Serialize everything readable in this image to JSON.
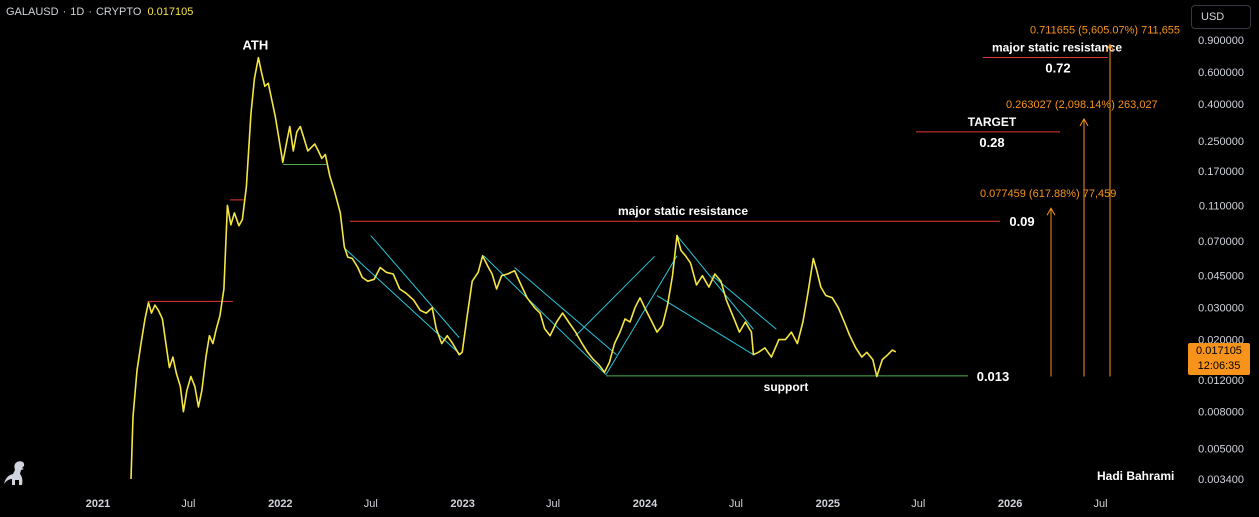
{
  "header": {
    "symbol": "GALAUSD",
    "interval": "1D",
    "exchange": "CRYPTO",
    "last_price": "0.017105"
  },
  "currency_button": "USD",
  "price_tag": {
    "price": "0.017105",
    "countdown": "12:06:35"
  },
  "author": "Hadi Bahrami",
  "colors": {
    "price_line": "#f5e642",
    "resistance": "#e53935",
    "support": "#4caf50",
    "channel": "#26c6da",
    "projection": "#f7931a",
    "background": "#000000"
  },
  "chart_data": {
    "type": "line",
    "series": [
      {
        "values": [
          [
            "2021-03-08",
            0.0034
          ],
          [
            "2021-03-12",
            0.0075
          ],
          [
            "2021-03-20",
            0.0135
          ],
          [
            "2021-03-28",
            0.019
          ],
          [
            "2021-04-05",
            0.026
          ],
          [
            "2021-04-12",
            0.032
          ],
          [
            "2021-04-18",
            0.028
          ],
          [
            "2021-04-25",
            0.031
          ],
          [
            "2021-05-02",
            0.029
          ],
          [
            "2021-05-10",
            0.026
          ],
          [
            "2021-05-17",
            0.019
          ],
          [
            "2021-05-24",
            0.014
          ],
          [
            "2021-05-31",
            0.016
          ],
          [
            "2021-06-07",
            0.013
          ],
          [
            "2021-06-15",
            0.011
          ],
          [
            "2021-06-21",
            0.008
          ],
          [
            "2021-06-28",
            0.0105
          ],
          [
            "2021-07-06",
            0.0125
          ],
          [
            "2021-07-14",
            0.011
          ],
          [
            "2021-07-21",
            0.0085
          ],
          [
            "2021-07-28",
            0.0105
          ],
          [
            "2021-08-05",
            0.016
          ],
          [
            "2021-08-12",
            0.021
          ],
          [
            "2021-08-19",
            0.019
          ],
          [
            "2021-08-26",
            0.023
          ],
          [
            "2021-09-02",
            0.027
          ],
          [
            "2021-09-10",
            0.038
          ],
          [
            "2021-09-17",
            0.11
          ],
          [
            "2021-09-24",
            0.086
          ],
          [
            "2021-10-01",
            0.1
          ],
          [
            "2021-10-10",
            0.085
          ],
          [
            "2021-10-17",
            0.092
          ],
          [
            "2021-10-25",
            0.14
          ],
          [
            "2021-11-03",
            0.35
          ],
          [
            "2021-11-10",
            0.55
          ],
          [
            "2021-11-18",
            0.72
          ],
          [
            "2021-11-24",
            0.6
          ],
          [
            "2021-12-01",
            0.5
          ],
          [
            "2021-12-08",
            0.52
          ],
          [
            "2021-12-15",
            0.42
          ],
          [
            "2021-12-22",
            0.34
          ],
          [
            "2021-12-29",
            0.26
          ],
          [
            "2022-01-06",
            0.19
          ],
          [
            "2022-01-13",
            0.24
          ],
          [
            "2022-01-20",
            0.3
          ],
          [
            "2022-01-27",
            0.22
          ],
          [
            "2022-02-03",
            0.28
          ],
          [
            "2022-02-10",
            0.3
          ],
          [
            "2022-02-17",
            0.26
          ],
          [
            "2022-02-25",
            0.22
          ],
          [
            "2022-03-04",
            0.23
          ],
          [
            "2022-03-11",
            0.24
          ],
          [
            "2022-03-18",
            0.22
          ],
          [
            "2022-03-25",
            0.2
          ],
          [
            "2022-04-01",
            0.21
          ],
          [
            "2022-04-10",
            0.16
          ],
          [
            "2022-04-20",
            0.13
          ],
          [
            "2022-05-01",
            0.1
          ],
          [
            "2022-05-09",
            0.065
          ],
          [
            "2022-05-16",
            0.057
          ],
          [
            "2022-05-25",
            0.056
          ],
          [
            "2022-06-05",
            0.05
          ],
          [
            "2022-06-14",
            0.044
          ],
          [
            "2022-06-25",
            0.042
          ],
          [
            "2022-07-08",
            0.043
          ],
          [
            "2022-07-20",
            0.05
          ],
          [
            "2022-08-01",
            0.047
          ],
          [
            "2022-08-15",
            0.046
          ],
          [
            "2022-08-28",
            0.038
          ],
          [
            "2022-09-10",
            0.036
          ],
          [
            "2022-09-25",
            0.033
          ],
          [
            "2022-10-08",
            0.029
          ],
          [
            "2022-10-20",
            0.028
          ],
          [
            "2022-11-01",
            0.03
          ],
          [
            "2022-11-09",
            0.023
          ],
          [
            "2022-11-20",
            0.019
          ],
          [
            "2022-12-01",
            0.021
          ],
          [
            "2022-12-12",
            0.019
          ],
          [
            "2022-12-25",
            0.0165
          ],
          [
            "2022-12-31",
            0.017
          ],
          [
            "2023-01-10",
            0.027
          ],
          [
            "2023-01-20",
            0.042
          ],
          [
            "2023-02-01",
            0.047
          ],
          [
            "2023-02-10",
            0.058
          ],
          [
            "2023-02-20",
            0.051
          ],
          [
            "2023-03-01",
            0.046
          ],
          [
            "2023-03-10",
            0.038
          ],
          [
            "2023-03-20",
            0.045
          ],
          [
            "2023-04-01",
            0.046
          ],
          [
            "2023-04-15",
            0.048
          ],
          [
            "2023-04-28",
            0.04
          ],
          [
            "2023-05-10",
            0.034
          ],
          [
            "2023-05-25",
            0.03
          ],
          [
            "2023-06-05",
            0.028
          ],
          [
            "2023-06-14",
            0.023
          ],
          [
            "2023-06-25",
            0.021
          ],
          [
            "2023-07-08",
            0.025
          ],
          [
            "2023-07-20",
            0.028
          ],
          [
            "2023-08-01",
            0.025
          ],
          [
            "2023-08-15",
            0.022
          ],
          [
            "2023-08-28",
            0.019
          ],
          [
            "2023-09-08",
            0.017
          ],
          [
            "2023-09-20",
            0.0155
          ],
          [
            "2023-10-01",
            0.0145
          ],
          [
            "2023-10-12",
            0.0132
          ],
          [
            "2023-10-22",
            0.015
          ],
          [
            "2023-11-01",
            0.019
          ],
          [
            "2023-11-12",
            0.022
          ],
          [
            "2023-11-22",
            0.026
          ],
          [
            "2023-12-02",
            0.025
          ],
          [
            "2023-12-12",
            0.03
          ],
          [
            "2023-12-22",
            0.034
          ],
          [
            "2024-01-03",
            0.029
          ],
          [
            "2024-01-15",
            0.025
          ],
          [
            "2024-01-25",
            0.022
          ],
          [
            "2024-02-05",
            0.024
          ],
          [
            "2024-02-15",
            0.031
          ],
          [
            "2024-02-25",
            0.045
          ],
          [
            "2024-03-05",
            0.075
          ],
          [
            "2024-03-13",
            0.062
          ],
          [
            "2024-03-22",
            0.058
          ],
          [
            "2024-04-01",
            0.053
          ],
          [
            "2024-04-13",
            0.04
          ],
          [
            "2024-04-25",
            0.045
          ],
          [
            "2024-05-08",
            0.039
          ],
          [
            "2024-05-20",
            0.046
          ],
          [
            "2024-06-01",
            0.042
          ],
          [
            "2024-06-12",
            0.033
          ],
          [
            "2024-06-25",
            0.027
          ],
          [
            "2024-07-08",
            0.022
          ],
          [
            "2024-07-20",
            0.025
          ],
          [
            "2024-08-01",
            0.022
          ],
          [
            "2024-08-05",
            0.0165
          ],
          [
            "2024-08-15",
            0.017
          ],
          [
            "2024-08-28",
            0.018
          ],
          [
            "2024-09-10",
            0.016
          ],
          [
            "2024-09-25",
            0.02
          ],
          [
            "2024-10-08",
            0.02
          ],
          [
            "2024-10-20",
            0.022
          ],
          [
            "2024-11-01",
            0.019
          ],
          [
            "2024-11-12",
            0.025
          ],
          [
            "2024-11-22",
            0.036
          ],
          [
            "2024-12-03",
            0.056
          ],
          [
            "2024-12-10",
            0.048
          ],
          [
            "2024-12-18",
            0.039
          ],
          [
            "2024-12-28",
            0.035
          ],
          [
            "2025-01-10",
            0.034
          ],
          [
            "2025-01-22",
            0.03
          ],
          [
            "2025-02-03",
            0.025
          ],
          [
            "2025-02-14",
            0.021
          ],
          [
            "2025-02-26",
            0.018
          ],
          [
            "2025-03-10",
            0.016
          ],
          [
            "2025-03-20",
            0.017
          ],
          [
            "2025-04-01",
            0.0155
          ],
          [
            "2025-04-09",
            0.0125
          ],
          [
            "2025-04-20",
            0.0155
          ],
          [
            "2025-05-01",
            0.0165
          ],
          [
            "2025-05-10",
            0.0175
          ],
          [
            "2025-05-17",
            0.0171
          ]
        ]
      }
    ],
    "x_ticks": [
      "2021",
      "Jul",
      "2022",
      "Jul",
      "2023",
      "Jul",
      "2024",
      "Jul",
      "2025",
      "Jul",
      "2026",
      "Jul"
    ],
    "y_scale": "log",
    "y_ticks": [
      "0.900000",
      "0.600000",
      "0.400000",
      "0.250000",
      "0.170000",
      "0.110000",
      "0.070000",
      "0.045000",
      "0.030000",
      "0.020000",
      "0.012000",
      "0.008000",
      "0.005000",
      "0.003400"
    ],
    "y_range": [
      0.0033,
      1.0
    ],
    "horizontal_levels": [
      {
        "label": "0.72",
        "price": 0.72,
        "color": "resistance",
        "title": "major static resistance"
      },
      {
        "label": "0.28",
        "price": 0.28,
        "color": "resistance",
        "title": "TARGET"
      },
      {
        "label": "0.09",
        "price": 0.09,
        "color": "resistance",
        "title": "major static resistance"
      },
      {
        "label": "0.013",
        "price": 0.0126,
        "color": "support",
        "title": "support"
      }
    ],
    "annotations": [
      {
        "text": "ATH",
        "x": "2021-11-18",
        "y": 0.72
      }
    ],
    "projections": [
      {
        "text": "0.077459 (617.88%) 77,459",
        "from": 0.0125,
        "to": 0.09
      },
      {
        "text": "0.263027 (2,098.14%) 263,027",
        "from": 0.0125,
        "to": 0.28
      },
      {
        "text": "0.711655 (5,605.07%) 711,655",
        "from": 0.0125,
        "to": 0.72
      }
    ]
  }
}
